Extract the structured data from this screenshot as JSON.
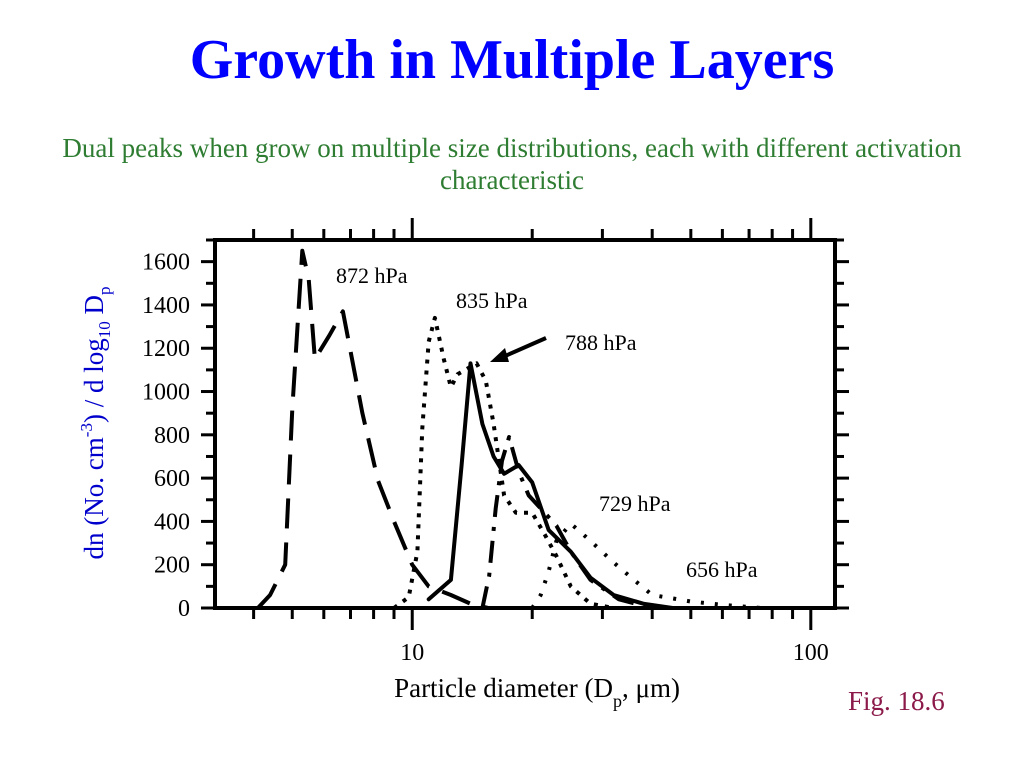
{
  "slide": {
    "title": "Growth in Multiple Layers",
    "subtitle": "Dual peaks when grow on multiple size distributions, each with different activation characteristic",
    "figure_label": "Fig. 18.6"
  },
  "colors": {
    "title": "#0000ff",
    "subtitle": "#2e7d32",
    "figure_label": "#8b1a4a",
    "ylabel": "#0000cc",
    "ink": "#000000"
  },
  "chart_data": {
    "type": "line",
    "x_scale": "log",
    "xlim": [
      3.2,
      115
    ],
    "ylim": [
      0,
      1700
    ],
    "xlabel": "Particle diameter (Dp, μm)",
    "xlabel_parts": {
      "main": "Particle diameter (D",
      "sub": "p",
      "tail": ",  μm)"
    },
    "ylabel": "dn (No. cm-3) / d log10 Dp",
    "ylabel_parts": {
      "a": "dn (No. cm",
      "sup": "-3",
      "b": ") / d log",
      "sub1": "10",
      "c": " D",
      "sub2": "p"
    },
    "x_tick_labels": [
      {
        "value": 10,
        "label": "10"
      },
      {
        "value": 100,
        "label": "100"
      }
    ],
    "y_tick_labels": [
      {
        "value": 0,
        "label": "0"
      },
      {
        "value": 200,
        "label": "200"
      },
      {
        "value": 400,
        "label": "400"
      },
      {
        "value": 600,
        "label": "600"
      },
      {
        "value": 800,
        "label": "800"
      },
      {
        "value": 1000,
        "label": "1000"
      },
      {
        "value": 1200,
        "label": "1200"
      },
      {
        "value": 1400,
        "label": "1400"
      },
      {
        "value": 1600,
        "label": "1600"
      }
    ],
    "legend": "none",
    "grid": false,
    "series": [
      {
        "name": "872 hPa",
        "dash": "long-dash",
        "points": [
          [
            4.1,
            0
          ],
          [
            4.4,
            60
          ],
          [
            4.8,
            200
          ],
          [
            5.0,
            920
          ],
          [
            5.3,
            1650
          ],
          [
            5.5,
            1520
          ],
          [
            5.7,
            1150
          ],
          [
            6.2,
            1260
          ],
          [
            6.7,
            1370
          ],
          [
            7.5,
            900
          ],
          [
            8.2,
            590
          ],
          [
            9.0,
            400
          ],
          [
            10.0,
            200
          ],
          [
            11.0,
            100
          ],
          [
            12.5,
            60
          ],
          [
            14.0,
            20
          ],
          [
            15.5,
            0
          ]
        ]
      },
      {
        "name": "835 hPa",
        "dash": "dotted",
        "points": [
          [
            9.0,
            0
          ],
          [
            9.8,
            50
          ],
          [
            10.3,
            260
          ],
          [
            10.6,
            830
          ],
          [
            11.0,
            1230
          ],
          [
            11.4,
            1340
          ],
          [
            12.0,
            1150
          ],
          [
            12.5,
            1020
          ],
          [
            13.0,
            1080
          ],
          [
            14.5,
            1130
          ],
          [
            15.3,
            1050
          ],
          [
            16.0,
            850
          ],
          [
            17.0,
            520
          ],
          [
            18.2,
            440
          ],
          [
            20.0,
            440
          ],
          [
            21.5,
            340
          ],
          [
            23.0,
            240
          ],
          [
            25.0,
            100
          ],
          [
            28.0,
            20
          ],
          [
            32.0,
            0
          ]
        ]
      },
      {
        "name": "788 hPa",
        "dash": "solid",
        "points": [
          [
            11.0,
            40
          ],
          [
            12.5,
            130
          ],
          [
            13.3,
            660
          ],
          [
            14.0,
            1130
          ],
          [
            15.0,
            850
          ],
          [
            16.0,
            700
          ],
          [
            17.0,
            620
          ],
          [
            18.5,
            660
          ],
          [
            20.0,
            580
          ],
          [
            22.0,
            360
          ],
          [
            25.0,
            260
          ],
          [
            28.0,
            140
          ],
          [
            32.0,
            60
          ],
          [
            38.0,
            20
          ],
          [
            45.0,
            0
          ]
        ]
      },
      {
        "name": "729 hPa",
        "dash": "dash-dot",
        "points": [
          [
            15.0,
            0
          ],
          [
            15.6,
            150
          ],
          [
            16.2,
            460
          ],
          [
            16.8,
            680
          ],
          [
            17.5,
            790
          ],
          [
            18.5,
            630
          ],
          [
            19.6,
            520
          ],
          [
            21.5,
            440
          ],
          [
            23.0,
            380
          ],
          [
            25.0,
            260
          ],
          [
            28.0,
            130
          ],
          [
            33.0,
            40
          ],
          [
            40.0,
            0
          ]
        ]
      },
      {
        "name": "656 hPa",
        "dash": "sparse-dot",
        "points": [
          [
            20.0,
            0
          ],
          [
            21.0,
            60
          ],
          [
            22.0,
            170
          ],
          [
            23.0,
            310
          ],
          [
            25.0,
            390
          ],
          [
            28.0,
            310
          ],
          [
            32.0,
            210
          ],
          [
            36.0,
            130
          ],
          [
            40.0,
            60
          ],
          [
            50.0,
            30
          ],
          [
            60.0,
            15
          ],
          [
            75.0,
            0
          ]
        ]
      }
    ],
    "annotations": [
      {
        "text": "872 hPa"
      },
      {
        "text": "835 hPa"
      },
      {
        "text": "788 hPa"
      },
      {
        "text": "729 hPa"
      },
      {
        "text": "656 hPa"
      }
    ]
  }
}
